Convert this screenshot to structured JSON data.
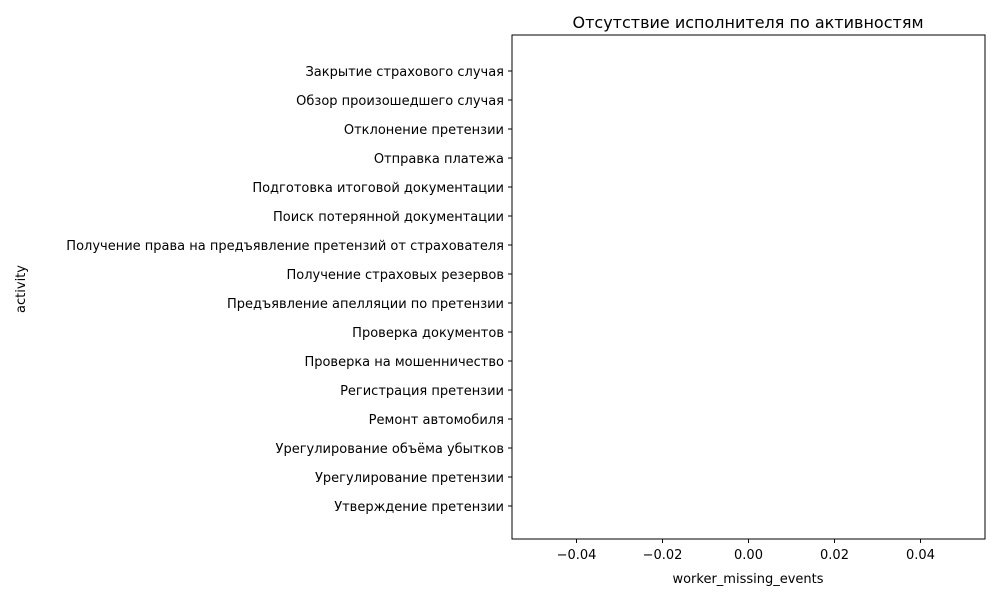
{
  "chart_data": {
    "type": "bar",
    "orientation": "horizontal",
    "title": "Отсутствие исполнителя по активностям",
    "xlabel": "worker_missing_events",
    "ylabel": "activity",
    "categories": [
      "Закрытие страхового случая",
      "Обзор произошедшего случая",
      "Отклонение претензии",
      "Отправка платежа",
      "Подготовка итоговой документации",
      "Поиск потерянной документации",
      "Получение права на предъявление претензий от страхователя",
      "Получение страховых резервов",
      "Предъявление апелляции по претензии",
      "Проверка документов",
      "Проверка на мошенничество",
      "Регистрация претензии",
      "Ремонт автомобиля",
      "Урегулирование объёма убытков",
      "Урегулирование претензии",
      "Утверждение претензии"
    ],
    "values": [
      0,
      0,
      0,
      0,
      0,
      0,
      0,
      0,
      0,
      0,
      0,
      0,
      0,
      0,
      0,
      0
    ],
    "xlim": [
      -0.055,
      0.055
    ],
    "xticks": [
      -0.04,
      -0.02,
      0.0,
      0.02,
      0.04
    ],
    "xtick_labels": [
      "−0.04",
      "−0.02",
      "0.00",
      "0.02",
      "0.04"
    ],
    "grid": false,
    "legend": "none"
  }
}
